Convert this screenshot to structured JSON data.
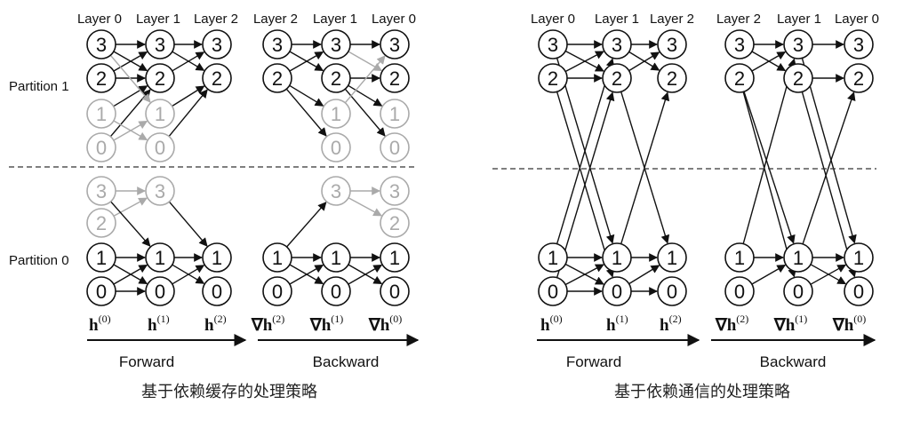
{
  "partition_labels": {
    "p1": "Partition 1",
    "p0": "Partition 0"
  },
  "panels": [
    {
      "layer_headers": [
        "Layer 0",
        "Layer 1",
        "Layer 2",
        "Layer 2",
        "Layer 1",
        "Layer 0"
      ],
      "feature_labels": [
        {
          "sym": "h",
          "sup": "(0)"
        },
        {
          "sym": "h",
          "sup": "(1)"
        },
        {
          "sym": "h",
          "sup": "(2)"
        },
        {
          "sym": "∇h",
          "sup": "(2)"
        },
        {
          "sym": "∇h",
          "sup": "(1)"
        },
        {
          "sym": "∇h",
          "sup": "(0)"
        }
      ],
      "forward_label": "Forward",
      "backward_label": "Backward",
      "caption": "基于依赖缓存的处理策略"
    },
    {
      "layer_headers": [
        "Layer 0",
        "Layer 1",
        "Layer 2",
        "Layer 2",
        "Layer 1",
        "Layer 0"
      ],
      "feature_labels": [
        {
          "sym": "h",
          "sup": "(0)"
        },
        {
          "sym": "h",
          "sup": "(1)"
        },
        {
          "sym": "h",
          "sup": "(2)"
        },
        {
          "sym": "∇h",
          "sup": "(2)"
        },
        {
          "sym": "∇h",
          "sup": "(1)"
        },
        {
          "sym": "∇h",
          "sup": "(0)"
        }
      ],
      "forward_label": "Forward",
      "backward_label": "Backward",
      "caption": "基于依赖通信的处理策略"
    }
  ],
  "colors": {
    "active": "#111111",
    "cached": "#aaaaaa"
  }
}
